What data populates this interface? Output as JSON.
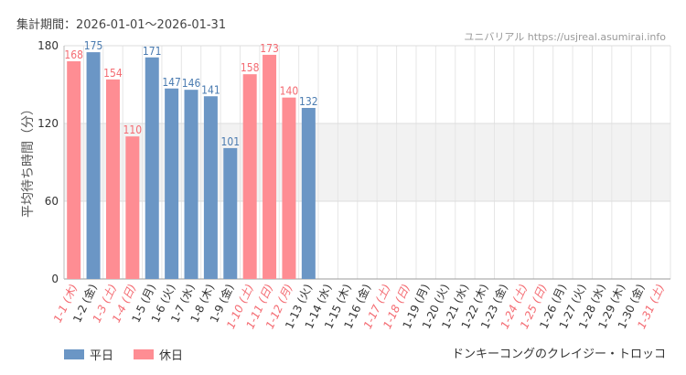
{
  "header": {
    "period": "集計期間：2026-01-01〜2026-01-31",
    "site": "ユニバリアル  https://usjreal.asumirai.info"
  },
  "footer": {
    "attraction": "ドンキーコングのクレイジー・トロッコ"
  },
  "colors": {
    "weekday": "#6b96c5",
    "holiday": "#fe8d93",
    "weekday_text": "#4a7bb0",
    "holiday_text": "#f46b72"
  },
  "chart_data": {
    "type": "bar",
    "ylabel": "平均待ち時間（分）",
    "ylim": [
      0,
      180
    ],
    "yticks": [
      0,
      60,
      120,
      180
    ],
    "shaded_band": [
      60,
      120
    ],
    "grid": true,
    "legend_position": "bottom-left",
    "legend": [
      {
        "name": "平日",
        "color_key": "weekday"
      },
      {
        "name": "休日",
        "color_key": "holiday"
      }
    ],
    "categories": [
      "1-1 (木)",
      "1-2 (金)",
      "1-3 (土)",
      "1-4 (日)",
      "1-5 (月)",
      "1-6 (火)",
      "1-7 (水)",
      "1-8 (木)",
      "1-9 (金)",
      "1-10 (土)",
      "1-11 (日)",
      "1-12 (月)",
      "1-13 (火)",
      "1-14 (水)",
      "1-15 (木)",
      "1-16 (金)",
      "1-17 (土)",
      "1-18 (日)",
      "1-19 (月)",
      "1-20 (火)",
      "1-21 (水)",
      "1-22 (木)",
      "1-23 (金)",
      "1-24 (土)",
      "1-25 (日)",
      "1-26 (月)",
      "1-27 (火)",
      "1-28 (水)",
      "1-29 (木)",
      "1-30 (金)",
      "1-31 (土)"
    ],
    "holiday": [
      true,
      false,
      true,
      true,
      false,
      false,
      false,
      false,
      false,
      true,
      true,
      true,
      false,
      false,
      false,
      false,
      true,
      true,
      false,
      false,
      false,
      false,
      false,
      true,
      true,
      false,
      false,
      false,
      false,
      false,
      true
    ],
    "values": [
      168,
      175,
      154,
      110,
      171,
      147,
      146,
      141,
      101,
      158,
      173,
      140,
      132,
      null,
      null,
      null,
      null,
      null,
      null,
      null,
      null,
      null,
      null,
      null,
      null,
      null,
      null,
      null,
      null,
      null,
      null
    ]
  }
}
